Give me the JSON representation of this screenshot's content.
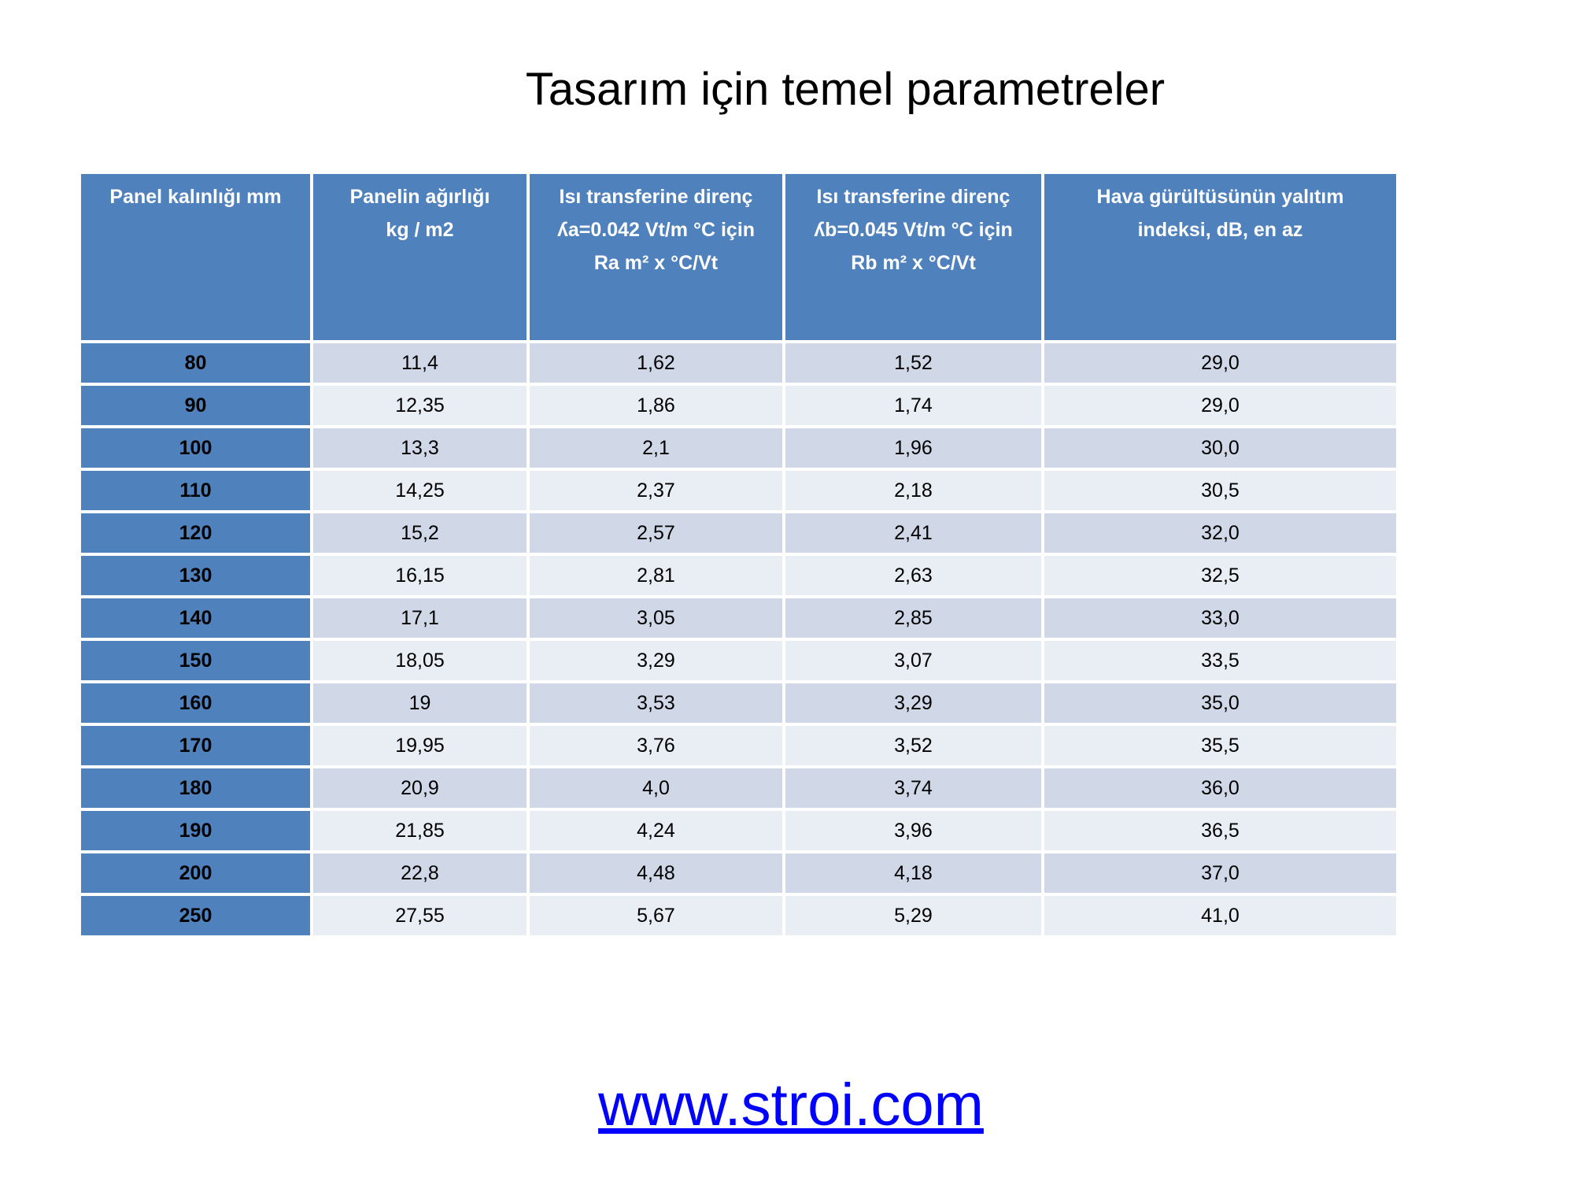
{
  "header": {
    "title": "Tasarım için temel parametreler"
  },
  "table": {
    "columns": [
      [
        "Panel kalınlığı mm"
      ],
      [
        "Panelin ağırlığı",
        "kg / m2"
      ],
      [
        "Isı transferine direnç",
        "ʎa=0.042 Vt/m °C için",
        "Ra m² x °C/Vt"
      ],
      [
        "Isı transferine direnç",
        "ʎb=0.045 Vt/m °C için",
        "Rb m² x °C/Vt"
      ],
      [
        "Hava gürültüsünün yalıtım",
        "indeksi, dB, en az"
      ]
    ],
    "rows": [
      [
        "80",
        "11,4",
        "1,62",
        "1,52",
        "29,0"
      ],
      [
        "90",
        "12,35",
        "1,86",
        "1,74",
        "29,0"
      ],
      [
        "100",
        "13,3",
        "2,1",
        "1,96",
        "30,0"
      ],
      [
        "110",
        "14,25",
        "2,37",
        "2,18",
        "30,5"
      ],
      [
        "120",
        "15,2",
        "2,57",
        "2,41",
        "32,0"
      ],
      [
        "130",
        "16,15",
        "2,81",
        "2,63",
        "32,5"
      ],
      [
        "140",
        "17,1",
        "3,05",
        "2,85",
        "33,0"
      ],
      [
        "150",
        "18,05",
        "3,29",
        "3,07",
        "33,5"
      ],
      [
        "160",
        "19",
        "3,53",
        "3,29",
        "35,0"
      ],
      [
        "170",
        "19,95",
        "3,76",
        "3,52",
        "35,5"
      ],
      [
        "180",
        "20,9",
        "4,0",
        "3,74",
        "36,0"
      ],
      [
        "190",
        "21,85",
        "4,24",
        "3,96",
        "36,5"
      ],
      [
        "200",
        "22,8",
        "4,48",
        "4,18",
        "37,0"
      ],
      [
        "250",
        "27,55",
        "5,67",
        "5,29",
        "41,0"
      ]
    ]
  },
  "footer": {
    "link": "www.stroi.com"
  }
}
